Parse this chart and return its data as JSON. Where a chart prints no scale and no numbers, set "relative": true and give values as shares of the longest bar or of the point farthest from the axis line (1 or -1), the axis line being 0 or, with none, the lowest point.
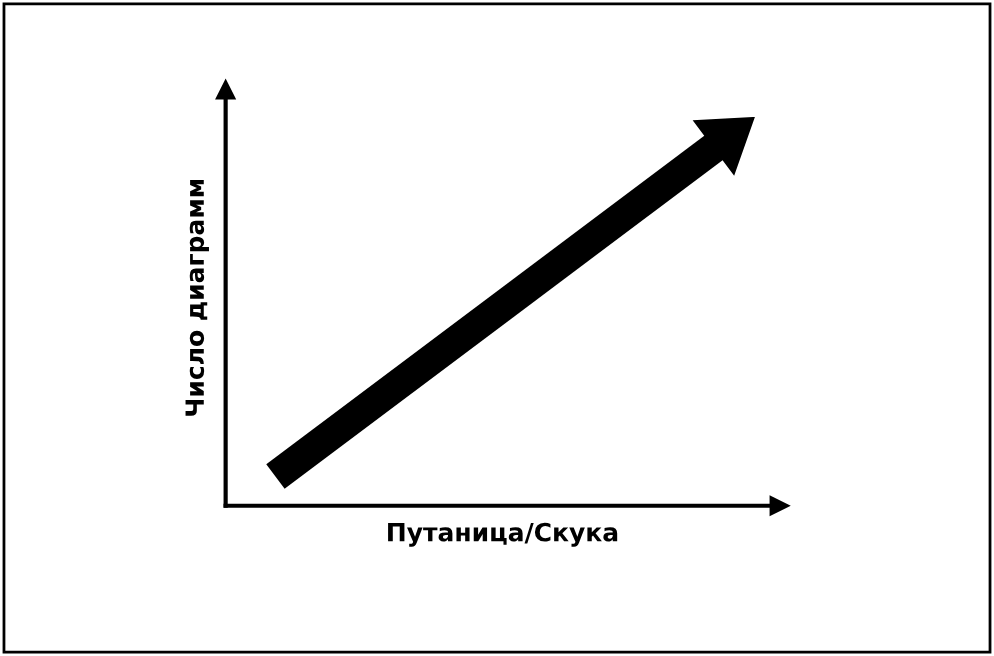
{
  "chart_data": {
    "type": "line",
    "relative": true,
    "xlabel": "Путаница/Скука",
    "ylabel": "Число диаграмм",
    "categories": [
      null,
      null
    ],
    "series": [
      {
        "color": "#000000",
        "values": [
          0.08,
          1
        ]
      }
    ],
    "line_style": "solid",
    "grid": false,
    "legend": false,
    "tick_labels": false
  }
}
